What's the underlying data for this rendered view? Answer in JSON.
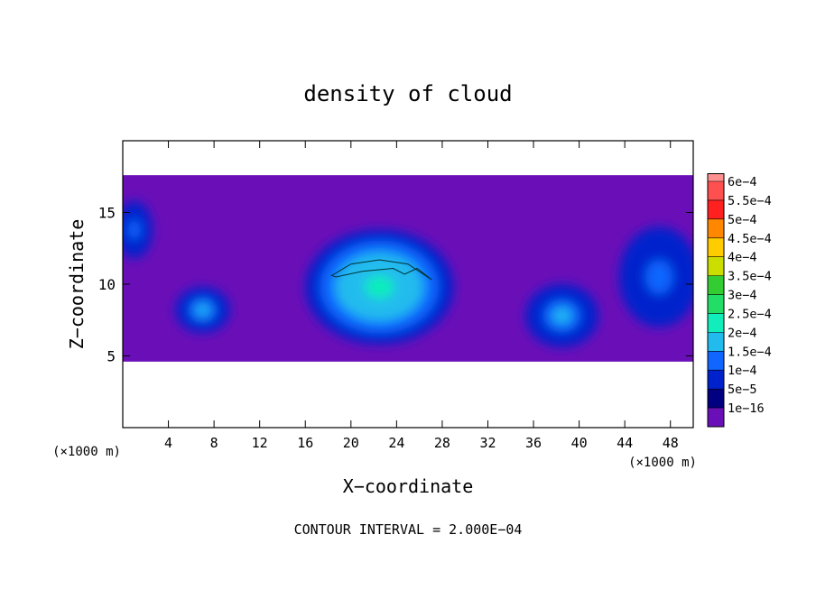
{
  "chart_data": {
    "type": "heatmap",
    "title": "density of cloud",
    "xlabel": "X−coordinate",
    "ylabel": "Z−coordinate",
    "x_unit_label": "(×1000 m)",
    "y_unit_label": "(×1000 m)",
    "xlim": [
      0,
      50
    ],
    "ylim": [
      0,
      20
    ],
    "x_ticks": [
      4,
      8,
      12,
      16,
      20,
      24,
      28,
      32,
      36,
      40,
      44,
      48
    ],
    "y_ticks": [
      5,
      10,
      15
    ],
    "footer": "CONTOUR INTERVAL = 2.000E−04",
    "colorbar": {
      "labels": [
        "6e−4",
        "5.5e−4",
        "5e−4",
        "4.5e−4",
        "4e−4",
        "3.5e−4",
        "3e−4",
        "2.5e−4",
        "2e−4",
        "1.5e−4",
        "1e−4",
        "5e−5",
        "1e−16"
      ],
      "colors": [
        "#ff9090",
        "#ff5050",
        "#ff2020",
        "#ff8800",
        "#ffcc00",
        "#ccdd00",
        "#33cc33",
        "#22dd66",
        "#11eebb",
        "#22bbee",
        "#1166ff",
        "#0022cc",
        "#000080",
        "#6a0fb8"
      ]
    },
    "field": {
      "z_range": [
        4.6,
        17.6
      ],
      "background_level": 1e-16,
      "features": [
        {
          "label": "central cloud",
          "x_center": 22.5,
          "z_center": 9.8,
          "x_half_width": 6.5,
          "z_half_height": 4.0,
          "peak": 0.00021
        },
        {
          "label": "eastern cell",
          "x_center": 38.5,
          "z_center": 7.8,
          "x_half_width": 3.2,
          "z_half_height": 2.2,
          "peak": 0.00015
        },
        {
          "label": "western cell",
          "x_center": 7.0,
          "z_center": 8.2,
          "x_half_width": 2.4,
          "z_half_height": 1.6,
          "peak": 0.00014
        },
        {
          "label": "left edge",
          "x_center": 1.0,
          "z_center": 13.8,
          "x_half_width": 1.6,
          "z_half_height": 2.0,
          "peak": 0.0001
        },
        {
          "label": "right edge",
          "x_center": 47.0,
          "z_center": 10.5,
          "x_half_width": 3.5,
          "z_half_height": 3.5,
          "peak": 0.0001
        }
      ],
      "contour_level": 0.0002
    }
  }
}
